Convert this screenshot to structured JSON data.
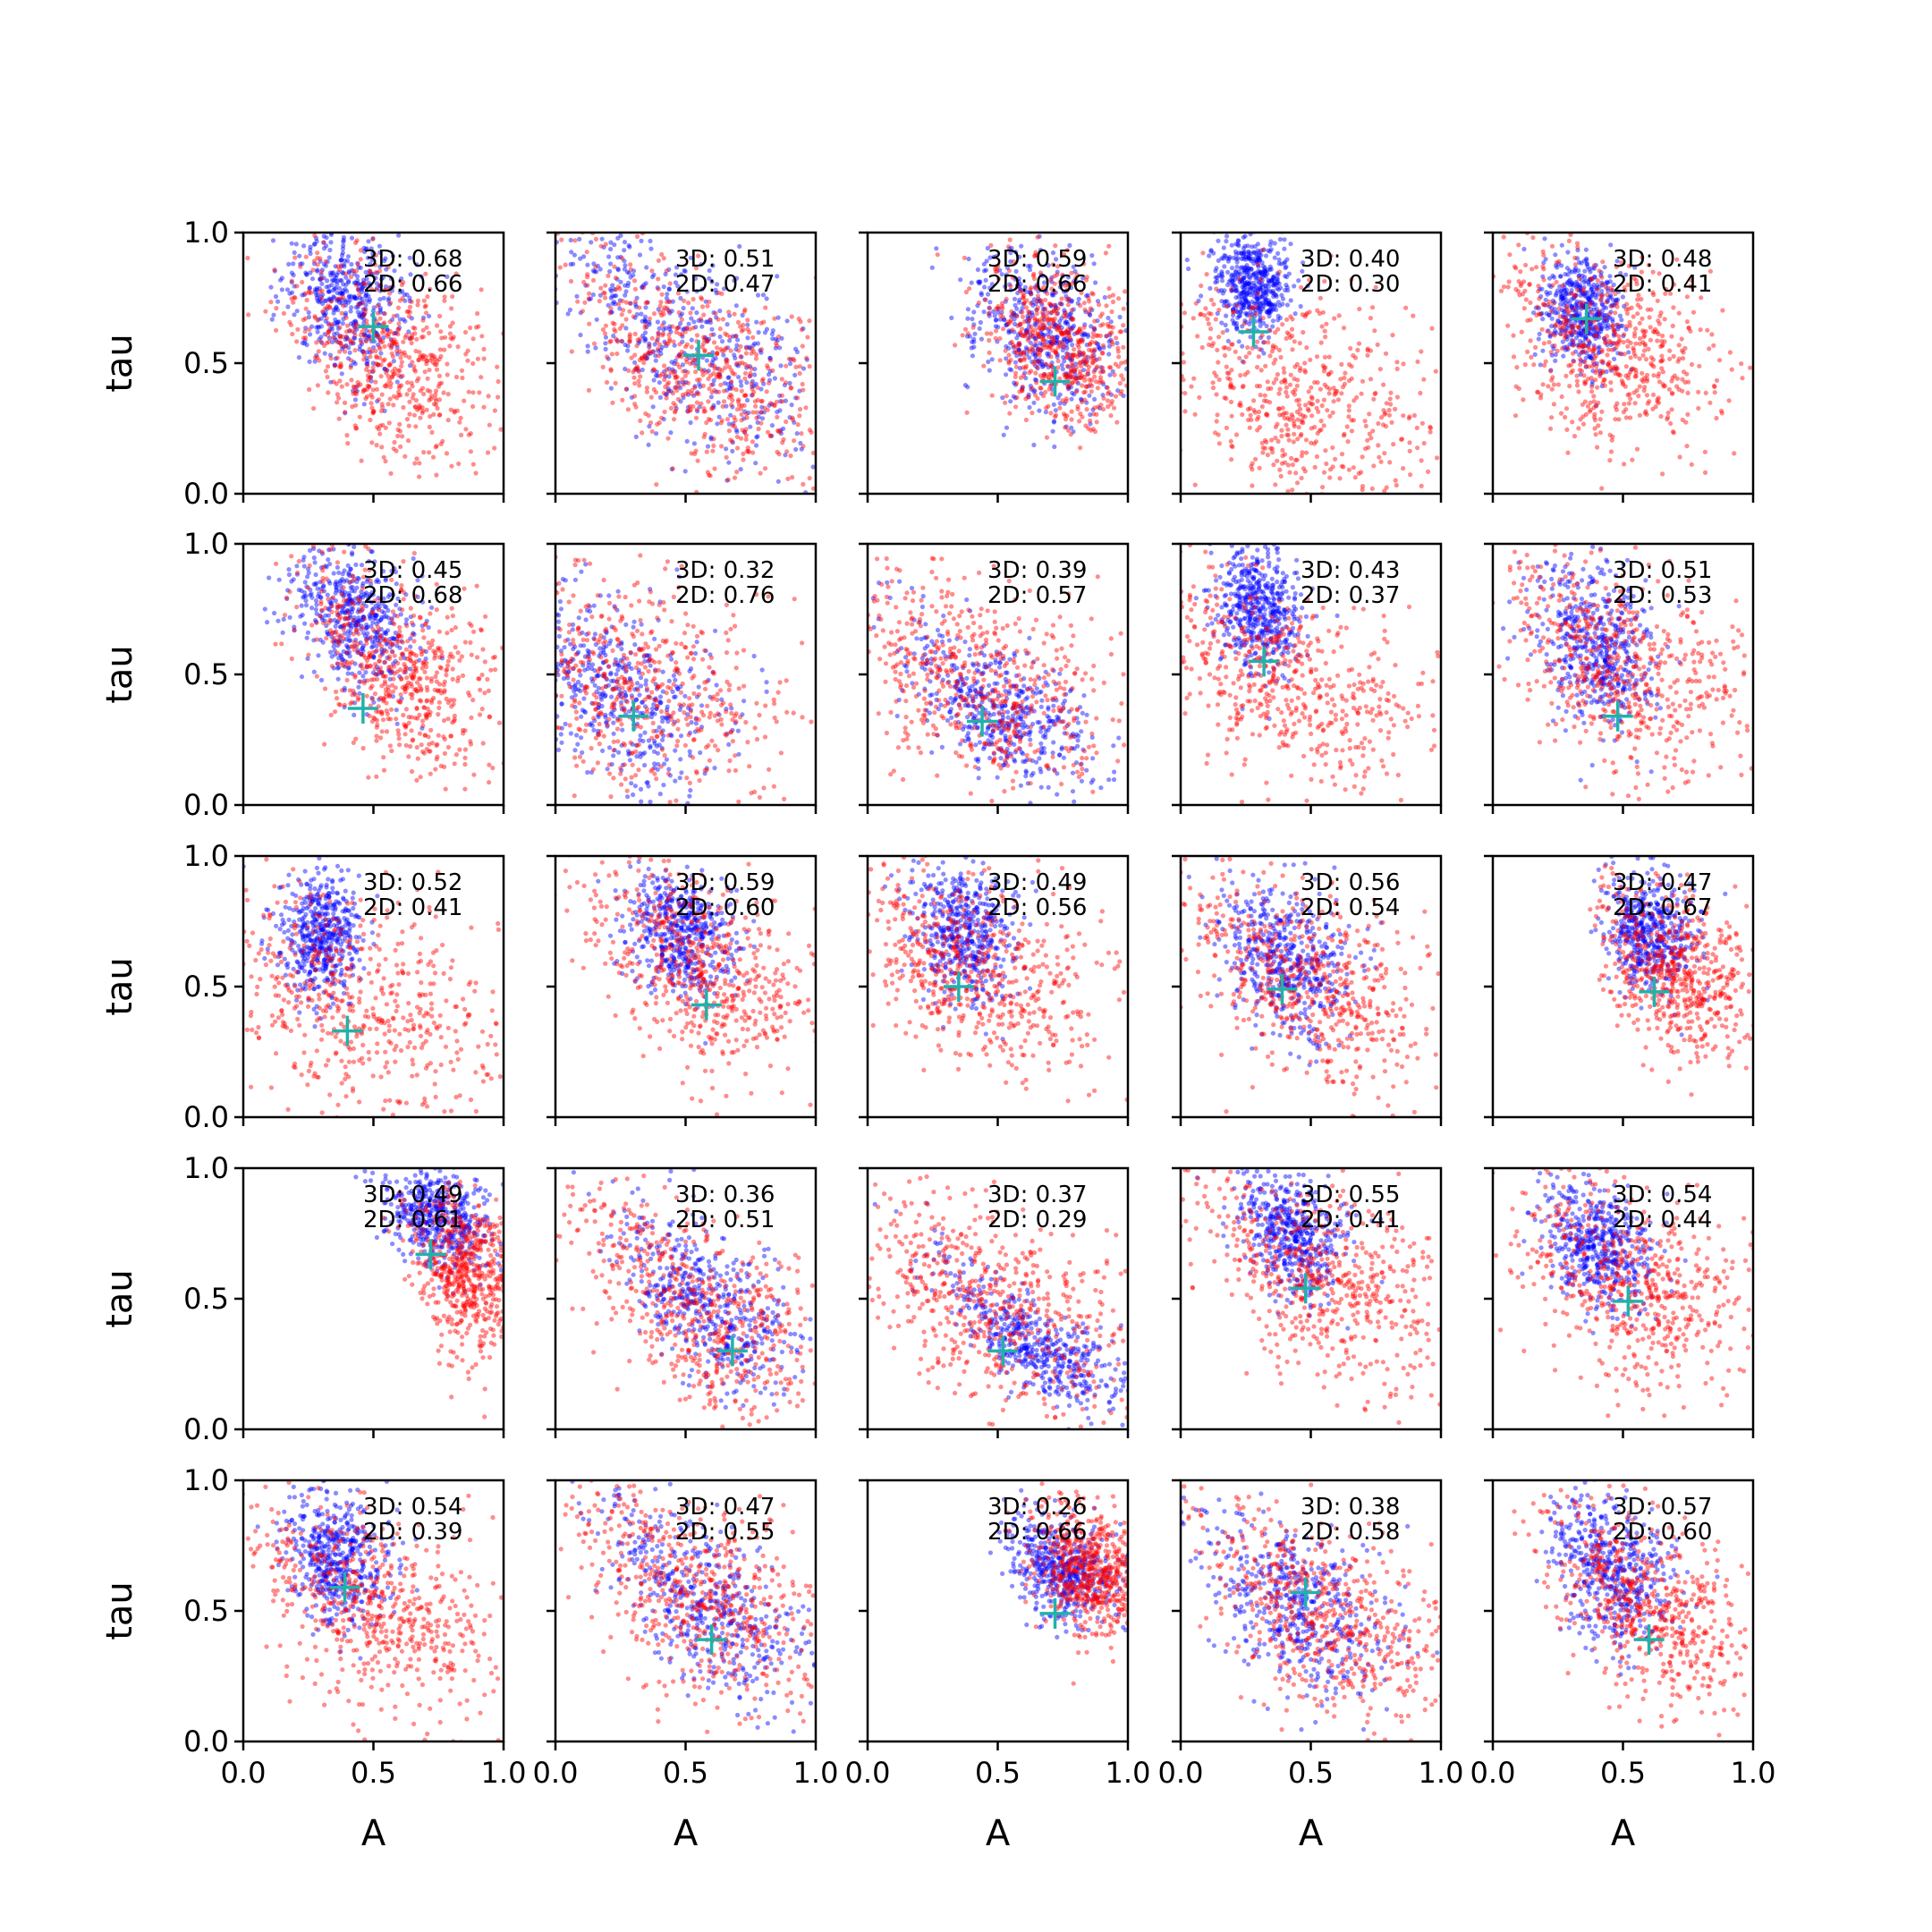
{
  "chart_data": {
    "type": "scatter",
    "layout": {
      "rows": 5,
      "cols": 5
    },
    "xlabel": "A",
    "ylabel": "tau",
    "xlim": [
      0,
      1
    ],
    "ylim": [
      0,
      1
    ],
    "xticks": [
      "0.0",
      "0.5",
      "1.0"
    ],
    "yticks": [
      "0.0",
      "0.5",
      "1.0"
    ],
    "colors": {
      "series_3d": "#0000ff",
      "series_2d": "#ff0000",
      "marker": "#20b2aa"
    },
    "panels": [
      {
        "label_3d": "3D: 0.68",
        "label_2d": "2D: 0.66",
        "marker": [
          0.5,
          0.64
        ],
        "blue": [
          0.4,
          0.75,
          0.12,
          0.25,
          0.35
        ],
        "red": [
          0.55,
          0.5,
          0.2,
          0.3,
          0.45
        ]
      },
      {
        "label_3d": "3D: 0.51",
        "label_2d": "2D: 0.47",
        "marker": [
          0.55,
          0.53
        ],
        "blue": [
          0.5,
          0.55,
          0.25,
          0.3,
          0.55
        ],
        "red": [
          0.55,
          0.45,
          0.25,
          0.3,
          0.5
        ]
      },
      {
        "label_3d": "3D: 0.59",
        "label_2d": "2D: 0.66",
        "marker": [
          0.72,
          0.43
        ],
        "blue": [
          0.68,
          0.6,
          0.15,
          0.25,
          0.3
        ],
        "red": [
          0.75,
          0.55,
          0.15,
          0.25,
          0.3
        ]
      },
      {
        "label_3d": "3D: 0.40",
        "label_2d": "2D: 0.30",
        "marker": [
          0.28,
          0.62
        ],
        "blue": [
          0.28,
          0.8,
          0.07,
          0.15,
          0.1
        ],
        "red": [
          0.45,
          0.35,
          0.3,
          0.35,
          0.3
        ]
      },
      {
        "label_3d": "3D: 0.48",
        "label_2d": "2D: 0.41",
        "marker": [
          0.36,
          0.67
        ],
        "blue": [
          0.34,
          0.7,
          0.08,
          0.18,
          0.15
        ],
        "red": [
          0.45,
          0.55,
          0.2,
          0.3,
          0.3
        ]
      },
      {
        "label_3d": "3D: 0.45",
        "label_2d": "2D: 0.68",
        "marker": [
          0.46,
          0.37
        ],
        "blue": [
          0.42,
          0.7,
          0.12,
          0.22,
          0.35
        ],
        "red": [
          0.6,
          0.5,
          0.2,
          0.28,
          0.5
        ]
      },
      {
        "label_3d": "3D: 0.32",
        "label_2d": "2D: 0.76",
        "marker": [
          0.3,
          0.34
        ],
        "blue": [
          0.25,
          0.4,
          0.2,
          0.3,
          0.5
        ],
        "red": [
          0.3,
          0.45,
          0.3,
          0.35,
          0.4
        ]
      },
      {
        "label_3d": "3D: 0.39",
        "label_2d": "2D: 0.57",
        "marker": [
          0.44,
          0.32
        ],
        "blue": [
          0.5,
          0.35,
          0.2,
          0.2,
          0.5
        ],
        "red": [
          0.4,
          0.45,
          0.3,
          0.3,
          0.4
        ]
      },
      {
        "label_3d": "3D: 0.43",
        "label_2d": "2D: 0.37",
        "marker": [
          0.32,
          0.55
        ],
        "blue": [
          0.3,
          0.75,
          0.08,
          0.2,
          0.2
        ],
        "red": [
          0.4,
          0.45,
          0.3,
          0.3,
          0.4
        ]
      },
      {
        "label_3d": "3D: 0.51",
        "label_2d": "2D: 0.53",
        "marker": [
          0.48,
          0.34
        ],
        "blue": [
          0.4,
          0.6,
          0.12,
          0.25,
          0.3
        ],
        "red": [
          0.5,
          0.5,
          0.25,
          0.3,
          0.4
        ]
      },
      {
        "label_3d": "3D: 0.52",
        "label_2d": "2D: 0.41",
        "marker": [
          0.4,
          0.33
        ],
        "blue": [
          0.3,
          0.7,
          0.08,
          0.2,
          0.15
        ],
        "red": [
          0.4,
          0.45,
          0.3,
          0.35,
          0.3
        ]
      },
      {
        "label_3d": "3D: 0.59",
        "label_2d": "2D: 0.60",
        "marker": [
          0.58,
          0.43
        ],
        "blue": [
          0.48,
          0.7,
          0.1,
          0.2,
          0.3
        ],
        "red": [
          0.55,
          0.55,
          0.22,
          0.3,
          0.45
        ]
      },
      {
        "label_3d": "3D: 0.49",
        "label_2d": "2D: 0.56",
        "marker": [
          0.35,
          0.5
        ],
        "blue": [
          0.36,
          0.7,
          0.1,
          0.22,
          0.3
        ],
        "red": [
          0.4,
          0.55,
          0.25,
          0.3,
          0.4
        ]
      },
      {
        "label_3d": "3D: 0.56",
        "label_2d": "2D: 0.54",
        "marker": [
          0.39,
          0.49
        ],
        "blue": [
          0.4,
          0.6,
          0.12,
          0.22,
          0.35
        ],
        "red": [
          0.5,
          0.5,
          0.25,
          0.3,
          0.45
        ]
      },
      {
        "label_3d": "3D: 0.47",
        "label_2d": "2D: 0.67",
        "marker": [
          0.62,
          0.48
        ],
        "blue": [
          0.6,
          0.7,
          0.08,
          0.18,
          0.3
        ],
        "red": [
          0.7,
          0.55,
          0.15,
          0.25,
          0.4
        ]
      },
      {
        "label_3d": "3D: 0.49",
        "label_2d": "2D: 0.61",
        "marker": [
          0.72,
          0.67
        ],
        "blue": [
          0.75,
          0.8,
          0.1,
          0.15,
          0.3
        ],
        "red": [
          0.85,
          0.6,
          0.1,
          0.25,
          0.3
        ]
      },
      {
        "label_3d": "3D: 0.36",
        "label_2d": "2D: 0.51",
        "marker": [
          0.68,
          0.3
        ],
        "blue": [
          0.6,
          0.45,
          0.18,
          0.22,
          0.55
        ],
        "red": [
          0.55,
          0.45,
          0.25,
          0.3,
          0.5
        ]
      },
      {
        "label_3d": "3D: 0.37",
        "label_2d": "2D: 0.29",
        "marker": [
          0.52,
          0.3
        ],
        "blue": [
          0.65,
          0.3,
          0.18,
          0.15,
          0.5
        ],
        "red": [
          0.5,
          0.45,
          0.28,
          0.3,
          0.4
        ]
      },
      {
        "label_3d": "3D: 0.55",
        "label_2d": "2D: 0.41",
        "marker": [
          0.48,
          0.54
        ],
        "blue": [
          0.42,
          0.75,
          0.1,
          0.2,
          0.3
        ],
        "red": [
          0.55,
          0.55,
          0.25,
          0.3,
          0.4
        ]
      },
      {
        "label_3d": "3D: 0.54",
        "label_2d": "2D: 0.44",
        "marker": [
          0.52,
          0.49
        ],
        "blue": [
          0.4,
          0.7,
          0.1,
          0.2,
          0.3
        ],
        "red": [
          0.55,
          0.55,
          0.25,
          0.3,
          0.4
        ]
      },
      {
        "label_3d": "3D: 0.54",
        "label_2d": "2D: 0.39",
        "marker": [
          0.39,
          0.59
        ],
        "blue": [
          0.36,
          0.7,
          0.1,
          0.2,
          0.25
        ],
        "red": [
          0.5,
          0.5,
          0.25,
          0.3,
          0.4
        ]
      },
      {
        "label_3d": "3D: 0.47",
        "label_2d": "2D: 0.55",
        "marker": [
          0.6,
          0.39
        ],
        "blue": [
          0.58,
          0.5,
          0.2,
          0.25,
          0.55
        ],
        "red": [
          0.55,
          0.55,
          0.25,
          0.3,
          0.45
        ]
      },
      {
        "label_3d": "3D: 0.26",
        "label_2d": "2D: 0.66",
        "marker": [
          0.72,
          0.49
        ],
        "blue": [
          0.75,
          0.65,
          0.1,
          0.15,
          0.3
        ],
        "red": [
          0.85,
          0.65,
          0.1,
          0.2,
          0.3
        ]
      },
      {
        "label_3d": "3D: 0.38",
        "label_2d": "2D: 0.58",
        "marker": [
          0.48,
          0.57
        ],
        "blue": [
          0.45,
          0.5,
          0.18,
          0.25,
          0.45
        ],
        "red": [
          0.55,
          0.45,
          0.25,
          0.28,
          0.45
        ]
      },
      {
        "label_3d": "3D: 0.57",
        "label_2d": "2D: 0.60",
        "marker": [
          0.6,
          0.39
        ],
        "blue": [
          0.45,
          0.65,
          0.12,
          0.25,
          0.4
        ],
        "red": [
          0.6,
          0.5,
          0.2,
          0.28,
          0.45
        ]
      }
    ]
  }
}
